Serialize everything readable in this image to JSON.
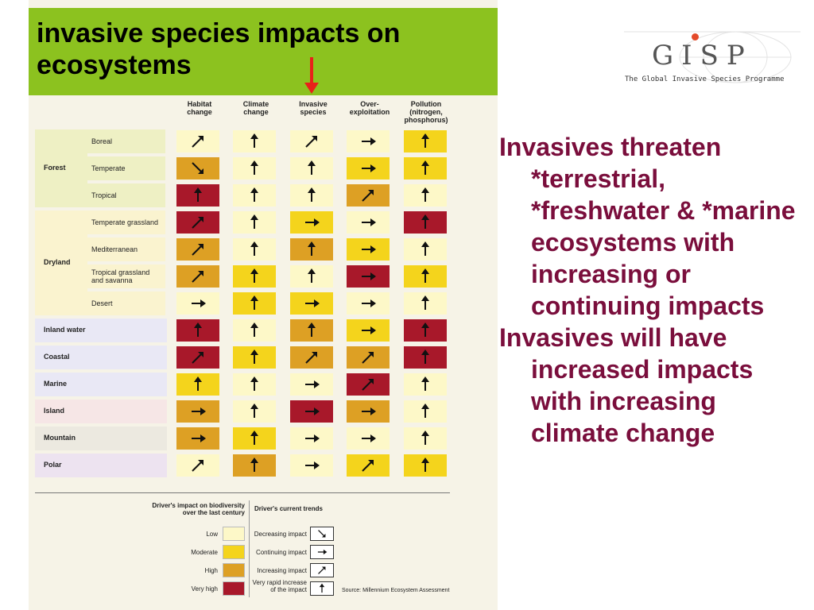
{
  "title": "invasive species impacts on ecosystems",
  "logo": {
    "letters": "GISP",
    "subtitle": "The Global Invasive Species Programme"
  },
  "columns": [
    "Habitat\nchange",
    "Climate\nchange",
    "Invasive\nspecies",
    "Over-\nexploitation",
    "Pollution\n(nitrogen,\nphosphorus)"
  ],
  "groups": [
    {
      "name": "Forest",
      "rows": [
        {
          "label": "Boreal",
          "cells": [
            [
              "low",
              "up-right"
            ],
            [
              "low",
              "up"
            ],
            [
              "low",
              "up-right"
            ],
            [
              "low",
              "right"
            ],
            [
              "moderate",
              "up"
            ]
          ]
        },
        {
          "label": "Temperate",
          "cells": [
            [
              "high",
              "down-right"
            ],
            [
              "low",
              "up"
            ],
            [
              "low",
              "up"
            ],
            [
              "moderate",
              "right"
            ],
            [
              "moderate",
              "up"
            ]
          ]
        },
        {
          "label": "Tropical",
          "cells": [
            [
              "veryhigh",
              "up"
            ],
            [
              "low",
              "up"
            ],
            [
              "low",
              "up"
            ],
            [
              "high",
              "up-right"
            ],
            [
              "low",
              "up"
            ]
          ]
        }
      ]
    },
    {
      "name": "Dryland",
      "rows": [
        {
          "label": "Temperate grassland",
          "cells": [
            [
              "veryhigh",
              "up-right"
            ],
            [
              "low",
              "up"
            ],
            [
              "moderate",
              "right"
            ],
            [
              "low",
              "right"
            ],
            [
              "veryhigh",
              "up"
            ]
          ]
        },
        {
          "label": "Mediterranean",
          "cells": [
            [
              "high",
              "up-right"
            ],
            [
              "low",
              "up"
            ],
            [
              "high",
              "up"
            ],
            [
              "moderate",
              "right"
            ],
            [
              "low",
              "up"
            ]
          ]
        },
        {
          "label": "Tropical grassland\nand savanna",
          "cells": [
            [
              "high",
              "up-right"
            ],
            [
              "moderate",
              "up"
            ],
            [
              "low",
              "up"
            ],
            [
              "veryhigh",
              "right"
            ],
            [
              "moderate",
              "up"
            ]
          ]
        },
        {
          "label": "Desert",
          "cells": [
            [
              "low",
              "right"
            ],
            [
              "moderate",
              "up"
            ],
            [
              "moderate",
              "right"
            ],
            [
              "low",
              "right"
            ],
            [
              "low",
              "up"
            ]
          ]
        }
      ]
    },
    {
      "name": "Inland water",
      "rows": [
        {
          "label": "",
          "cells": [
            [
              "veryhigh",
              "up"
            ],
            [
              "low",
              "up"
            ],
            [
              "high",
              "up"
            ],
            [
              "moderate",
              "right"
            ],
            [
              "veryhigh",
              "up"
            ]
          ]
        }
      ]
    },
    {
      "name": "Coastal",
      "rows": [
        {
          "label": "",
          "cells": [
            [
              "veryhigh",
              "up-right"
            ],
            [
              "moderate",
              "up"
            ],
            [
              "high",
              "up-right"
            ],
            [
              "high",
              "up-right"
            ],
            [
              "veryhigh",
              "up"
            ]
          ]
        }
      ]
    },
    {
      "name": "Marine",
      "rows": [
        {
          "label": "",
          "cells": [
            [
              "moderate",
              "up"
            ],
            [
              "low",
              "up"
            ],
            [
              "low",
              "right"
            ],
            [
              "veryhigh",
              "up-right"
            ],
            [
              "low",
              "up"
            ]
          ]
        }
      ]
    },
    {
      "name": "Island",
      "rows": [
        {
          "label": "",
          "cells": [
            [
              "high",
              "right"
            ],
            [
              "low",
              "up"
            ],
            [
              "veryhigh",
              "right"
            ],
            [
              "high",
              "right"
            ],
            [
              "low",
              "up"
            ]
          ]
        }
      ]
    },
    {
      "name": "Mountain",
      "rows": [
        {
          "label": "",
          "cells": [
            [
              "high",
              "right"
            ],
            [
              "moderate",
              "up"
            ],
            [
              "low",
              "right"
            ],
            [
              "low",
              "right"
            ],
            [
              "low",
              "up"
            ]
          ]
        }
      ]
    },
    {
      "name": "Polar",
      "rows": [
        {
          "label": "",
          "cells": [
            [
              "low",
              "up-right"
            ],
            [
              "high",
              "up"
            ],
            [
              "low",
              "right"
            ],
            [
              "moderate",
              "up-right"
            ],
            [
              "moderate",
              "up"
            ]
          ]
        }
      ]
    }
  ],
  "legend": {
    "impact_title": "Driver's impact on biodiversity\nover the last century",
    "impact_levels": [
      {
        "label": "Low",
        "color": "#fdf8c8"
      },
      {
        "label": "Moderate",
        "color": "#f4d41c"
      },
      {
        "label": "High",
        "color": "#dda024"
      },
      {
        "label": "Very high",
        "color": "#a8182a"
      }
    ],
    "trend_title": "Driver's current trends",
    "trends": [
      {
        "label": "Decreasing impact",
        "icon": "down-right"
      },
      {
        "label": "Continuing impact",
        "icon": "right"
      },
      {
        "label": "Increasing impact",
        "icon": "up-right"
      },
      {
        "label": "Very rapid increase\nof the impact",
        "icon": "up"
      }
    ],
    "source": "Source: Millennium Ecosystem Assessment"
  },
  "bullets": [
    "Invasives threaten *terrestrial, *freshwater & *marine ecosystems with increasing or continuing impacts",
    "Invasives will have increased impacts with increasing climate change"
  ],
  "colors": {
    "title_bar": "#8cc21f",
    "bullet_text": "#7a0e3c",
    "pointer_arrow": "#e8201a"
  }
}
